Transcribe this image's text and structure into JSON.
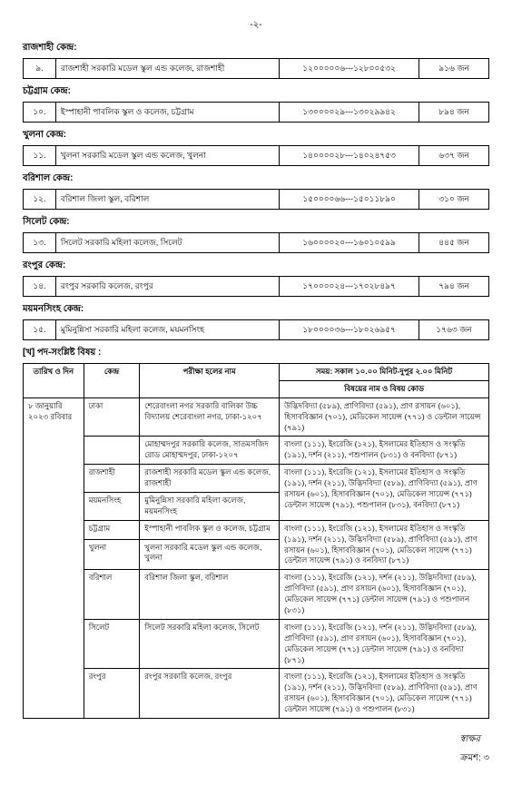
{
  "page_number": "-২-",
  "centers": [
    {
      "label": "রাজশাহী কেন্দ্র:",
      "rows": [
        {
          "sn": "৯.",
          "name": "রাজশাহী সরকারি মডেল স্কুল এন্ড কলেজ, রাজশাহী",
          "roll": "১২০০০০০৬---১২৮০০৫৩২",
          "count": "৯১৬ জন"
        }
      ]
    },
    {
      "label": "চট্টগ্রাম কেন্দ্র:",
      "rows": [
        {
          "sn": "১০.",
          "name": "ইস্পাহানী পাবলিক স্কুল ও কলেজ, চট্টগ্রাম",
          "roll": "১৩০০০০২৯---১৩০২৯৯৪২",
          "count": "৮৯৪ জন"
        }
      ]
    },
    {
      "label": "খুলনা কেন্দ্র:",
      "rows": [
        {
          "sn": "১১.",
          "name": "খুলনা সরকারি মডেল স্কুল এন্ড কলেজ, খুলনা",
          "roll": "১৪০০০০২৮---১৪০২৪৭৫৩",
          "count": "৬৩৭ জন"
        }
      ]
    },
    {
      "label": "বরিশাল কেন্দ্র:",
      "rows": [
        {
          "sn": "১২.",
          "name": "বরিশাল জিলা স্কুল, বরিশাল",
          "roll": "১৫০০০০৬৬---১৫০১১৮৯০",
          "count": "৩১০ জন"
        }
      ]
    },
    {
      "label": "সিলেট কেন্দ্র:",
      "rows": [
        {
          "sn": "১৩.",
          "name": "সিলেট সরকারি মহিলা কলেজ, সিলেট",
          "roll": "১৬০০০০২০---১৬০১০৫৯৯",
          "count": "৪৪৫ জন"
        }
      ]
    },
    {
      "label": "রংপুর কেন্দ্র:",
      "rows": [
        {
          "sn": "১৪.",
          "name": "রংপুর সরকারি কলেজ, রংপুর",
          "roll": "১৭০০০০২৪---১৭০২৮৪৯৭",
          "count": "৭৯৪ জন"
        }
      ]
    },
    {
      "label": "ময়মনসিংহ কেন্দ্র:",
      "rows": [
        {
          "sn": "১৫.",
          "name": "মুমিনুন্নিসা সরকারি মহিলা কলেজ, ময়মনসিংহ",
          "roll": "১৮০০০০৩৬---১৮০২৬৯৫৭",
          "count": "১৭৬৩ জন"
        }
      ]
    }
  ],
  "subject_section_label": "[খ] পদ-সংশ্লিষ্ট বিষয় :",
  "subject_table": {
    "headers": {
      "date": "তারিখ ও দিন",
      "center": "কেন্দ্র",
      "hall": "পরীক্ষা হলের নাম",
      "subject_title": "সময়: সকাল ১০.০০ মিনিট-দুপুর ২.০০ মিনিট",
      "subject_sub": "বিষয়ের নাম ও বিষয় কোড"
    },
    "date_value": "৮ জানুয়ারি ২০২৩ রবিবার",
    "rows": [
      {
        "center": "ঢাকা",
        "hall": "শেরেবাংলা নগর সরকারি বালিকা উচ্চ বিদ্যালয় শেরেবাংলা নগর, ঢাকা-১২০৭",
        "subject": "উদ্ভিদবিদ্যা (৫৮৯), প্রাণিবিদ্যা (৫৯১), প্রাণ রসায়ন (৬০১), হিসাববিজ্ঞান (৭০১), মেডিকেল সায়েন্স (৭৭১) ও ডেন্টাল সায়েন্স (৭৯১)"
      },
      {
        "center": "",
        "hall": "মোহাম্মদপুর সরকারি কলেজ, সাতমসজিদ রোড মোহাম্মদপুর, ঢাকা-১২০৭",
        "subject": "বাংলা (১১১), ইংরেজি (১২১), ইসলামের ইতিহাস ও সংস্কৃতি (১৯১), দর্শন (২১১), পশুপালন (৮৩১) ও বনবিদ্যা (৮৭১)"
      },
      {
        "center": "রাজশাহী",
        "hall": "রাজশাহী সরকারি মডেল স্কুল এন্ড কলেজ, রাজশাহী",
        "subject": "",
        "subject_rowspan": true
      },
      {
        "center": "ময়মনসিংহ",
        "hall": "মুমিনুন্নিসা সরকারি মহিলা কলেজ, ময়মনসিংহ",
        "subject": "বাংলা (১১১), ইংরেজি (১২১), ইসলামের ইতিহাস ও সংস্কৃতি (১৯১), দর্শন (২১১), উদ্ভিদবিদ্যা (৫৮৯), প্রাণিবিদ্যা (৫৯১), প্রাণ রসায়ন (৬০১), হিসাববিজ্ঞান (৭০১), মেডিকেল সায়েন্স (৭৭১) ডেন্টাল সায়েন্স (৭৯১), পশুপালন (৮৩১), বনবিদ্যা (৮৭১)"
      },
      {
        "center": "চট্টগ্রাম",
        "hall": "ইস্পাহানী পাবলিক স্কুল ও কলেজ, চট্টগ্রাম",
        "subject": "",
        "subject_rowspan": true
      },
      {
        "center": "খুলনা",
        "hall": "খুলনা সরকারি মডেল স্কুল এন্ড কলেজ, খুলনা",
        "subject": "বাংলা (১১১), ইংরেজি (১২১), ইসলামের ইতিহাস ও সংস্কৃতি (১৯১), দর্শন (২১১), উদ্ভিদবিদ্যা (৫৮৯), প্রাণিবিদ্যা (৫৯১), প্রাণ রসায়ন (৬০১), হিসাববিজ্ঞান (৭০১), মেডিকেল সায়েন্স (৭৭১) ডেন্টাল সায়েন্স (৭৯১) ও বনবিদ্যা (৮৭১)"
      },
      {
        "center": "বরিশাল",
        "hall": "বরিশাল জিলা স্কুল, বরিশাল",
        "subject": "বাংলা (১১১), ইংরেজি (১২১), দর্শন (২১১), উদ্ভিদবিদ্যা (৫৮৯), প্রাণিবিদ্যা (৫৯১), প্রাণ রসায়ন (৬০১), হিসাববিজ্ঞান (৭০১), মেডিকেল সায়েন্স (৭৭১) ডেন্টাল সায়েন্স (৭৯১) ও পশুপালন (৮৩১)"
      },
      {
        "center": "সিলেট",
        "hall": "সিলেট সরকারি মহিলা কলেজ, সিলেট",
        "subject": "বাংলা (১১১), ইংরেজি (১২১), দর্শন (২১১), উদ্ভিদবিদ্যা (৫৮৯), প্রাণিবিদ্যা (৫৯১), প্রাণ রসায়ন (৬০১), হিসাববিজ্ঞান (৭০১), মেডিকেল সায়েন্স (৭৭১) ডেন্টাল সায়েন্স (৭৯১) ও বনবিদ্যা (৮৭১)"
      },
      {
        "center": "রংপুর",
        "hall": "রংপুর সরকারি কলেজ, রংপুর",
        "subject": "বাংলা (১১১), ইংরেজি (১২১), ইসলামের ইতিহাস ও সংস্কৃতি (১৯১), দর্শন (২১১), উদ্ভিদবিদ্যা (৫৮৯), প্রাণিবিদ্যা (৫৯১), প্রাণ রসায়ন (৬০১), হিসাববিজ্ঞান (৭০১), মেডিকেল সায়েন্স (৭৭১) ডেন্টাল সায়েন্স (৭৯১) ও পশুপালন (৮৩১)"
      }
    ]
  },
  "footer": {
    "signature": "স্বাক্ষর",
    "continuation": "ক্রমশ: ৩"
  }
}
